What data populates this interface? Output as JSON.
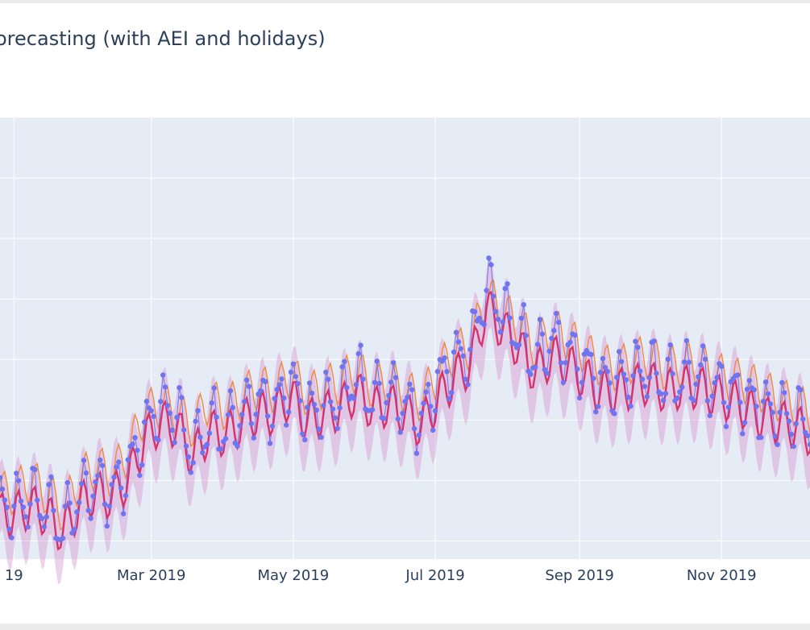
{
  "chart_data": {
    "type": "line",
    "title": "orecasting (with AEI and holidays)",
    "x_tick_labels": [
      "19",
      "Mar 2019",
      "May 2019",
      "Jul 2019",
      "Sep 2019",
      "Nov 2019"
    ],
    "x_tick_dates": [
      "2019-01-01",
      "2019-03-01",
      "2019-05-01",
      "2019-07-01",
      "2019-09-01",
      "2019-11-01"
    ],
    "xlim": [
      "2018-12-26",
      "2019-12-09"
    ],
    "ylim": [
      0,
      100
    ],
    "grid": true,
    "colors": {
      "observed": "#6f74f0",
      "forecast": "#d6336c",
      "baseline": "#f0883e",
      "interval": "#d99ad0",
      "plot_bg": "#e5ecf6",
      "grid": "#ffffff"
    },
    "series": [
      {
        "values": [
          [
            0,
            12
          ],
          [
            7,
            14
          ],
          [
            14,
            12
          ],
          [
            21,
            7
          ],
          [
            28,
            14
          ],
          [
            35,
            17
          ],
          [
            42,
            15
          ],
          [
            49,
            20
          ],
          [
            56,
            29
          ],
          [
            63,
            35
          ],
          [
            70,
            33
          ],
          [
            77,
            24
          ],
          [
            84,
            31
          ],
          [
            91,
            29
          ],
          [
            98,
            33
          ],
          [
            105,
            36
          ],
          [
            112,
            34
          ],
          [
            119,
            40
          ],
          [
            126,
            33
          ],
          [
            133,
            35
          ],
          [
            140,
            36
          ],
          [
            147,
            42
          ],
          [
            154,
            36
          ],
          [
            161,
            38
          ],
          [
            168,
            35
          ],
          [
            175,
            31
          ],
          [
            182,
            40
          ],
          [
            189,
            45
          ],
          [
            196,
            47
          ],
          [
            203,
            62
          ],
          [
            210,
            56
          ],
          [
            217,
            51
          ],
          [
            224,
            45
          ],
          [
            231,
            50
          ],
          [
            238,
            47
          ],
          [
            245,
            44
          ],
          [
            252,
            40
          ],
          [
            259,
            40
          ],
          [
            266,
            42
          ],
          [
            273,
            43
          ],
          [
            280,
            40
          ],
          [
            287,
            41
          ],
          [
            294,
            42
          ],
          [
            301,
            39
          ],
          [
            308,
            38
          ],
          [
            315,
            36
          ],
          [
            322,
            34
          ],
          [
            329,
            33
          ],
          [
            336,
            32
          ],
          [
            343,
            31
          ]
        ]
      },
      {
        "values": [
          [
            0,
            10
          ],
          [
            7,
            12
          ],
          [
            14,
            10
          ],
          [
            21,
            6
          ],
          [
            28,
            12
          ],
          [
            35,
            15
          ],
          [
            42,
            14
          ],
          [
            49,
            18
          ],
          [
            56,
            27
          ],
          [
            63,
            31
          ],
          [
            70,
            30
          ],
          [
            77,
            23
          ],
          [
            84,
            29
          ],
          [
            91,
            28
          ],
          [
            98,
            31
          ],
          [
            105,
            33
          ],
          [
            112,
            33
          ],
          [
            119,
            37
          ],
          [
            126,
            31
          ],
          [
            133,
            33
          ],
          [
            140,
            34
          ],
          [
            147,
            38
          ],
          [
            154,
            34
          ],
          [
            161,
            35
          ],
          [
            168,
            33
          ],
          [
            175,
            30
          ],
          [
            182,
            36
          ],
          [
            189,
            41
          ],
          [
            196,
            44
          ],
          [
            203,
            57
          ],
          [
            210,
            52
          ],
          [
            217,
            48
          ],
          [
            224,
            42
          ],
          [
            231,
            46
          ],
          [
            238,
            44
          ],
          [
            245,
            41
          ],
          [
            252,
            38
          ],
          [
            259,
            38
          ],
          [
            266,
            39
          ],
          [
            273,
            40
          ],
          [
            280,
            38
          ],
          [
            287,
            39
          ],
          [
            294,
            39
          ],
          [
            301,
            37
          ],
          [
            308,
            36
          ],
          [
            315,
            34
          ],
          [
            322,
            32
          ],
          [
            329,
            31
          ],
          [
            336,
            30
          ],
          [
            343,
            28
          ]
        ]
      },
      {
        "values": [
          [
            0,
            15
          ],
          [
            7,
            18
          ],
          [
            14,
            15
          ],
          [
            21,
            11
          ],
          [
            28,
            18
          ],
          [
            35,
            21
          ],
          [
            42,
            19
          ],
          [
            49,
            24
          ],
          [
            56,
            33
          ],
          [
            63,
            35
          ],
          [
            70,
            33
          ],
          [
            77,
            30
          ],
          [
            84,
            36
          ],
          [
            91,
            34
          ],
          [
            98,
            37
          ],
          [
            105,
            39
          ],
          [
            112,
            38
          ],
          [
            119,
            42
          ],
          [
            126,
            37
          ],
          [
            133,
            39
          ],
          [
            140,
            40
          ],
          [
            147,
            43
          ],
          [
            154,
            39
          ],
          [
            161,
            40
          ],
          [
            168,
            38
          ],
          [
            175,
            36
          ],
          [
            182,
            42
          ],
          [
            189,
            47
          ],
          [
            196,
            48
          ],
          [
            203,
            60
          ],
          [
            210,
            56
          ],
          [
            217,
            53
          ],
          [
            224,
            48
          ],
          [
            231,
            52
          ],
          [
            238,
            50
          ],
          [
            245,
            47
          ],
          [
            252,
            44
          ],
          [
            259,
            43
          ],
          [
            266,
            45
          ],
          [
            273,
            46
          ],
          [
            280,
            43
          ],
          [
            287,
            44
          ],
          [
            294,
            44
          ],
          [
            301,
            42
          ],
          [
            308,
            41
          ],
          [
            315,
            40
          ],
          [
            322,
            38
          ],
          [
            329,
            36
          ],
          [
            336,
            35
          ],
          [
            343,
            33
          ]
        ]
      }
    ]
  }
}
